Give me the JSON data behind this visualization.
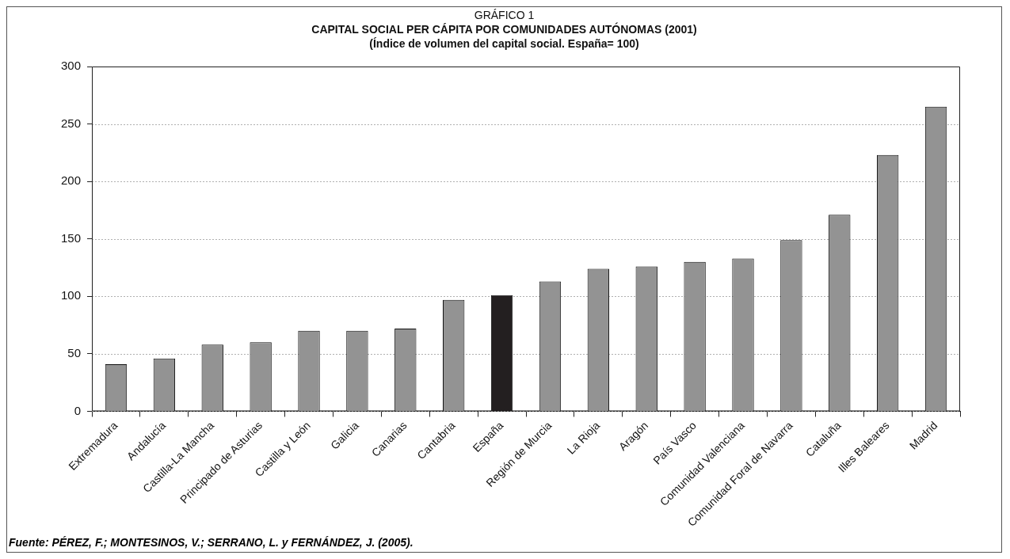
{
  "chart_data": {
    "type": "bar",
    "title": "CAPITAL SOCIAL PER CÁPITA POR COMUNIDADES AUTÓNOMAS (2001)",
    "subtitle": "(Índice de volumen del capital social. España= 100)",
    "annotations": [
      "GRÁFICO 1",
      "Fuente: PÉREZ, F.; MONTESINOS, V.; SERRANO, L. y FERNÁNDEZ, J. (2005)."
    ],
    "categories": [
      "Extremadura",
      "Andalucía",
      "Castilla-La Mancha",
      "Principado de Asturias",
      "Castilla y León",
      "Galicia",
      "Canarias",
      "Cantabria",
      "España",
      "Región de Murcia",
      "La Rioja",
      "Aragón",
      "País Vasco",
      "Comunidad Valenciana",
      "Comunidad Foral de Navarra",
      "Cataluña",
      "Illes Baleares",
      "Madrid"
    ],
    "values": [
      41,
      46,
      58,
      60,
      70,
      70,
      72,
      97,
      101,
      113,
      124,
      126,
      130,
      133,
      149,
      171,
      223,
      265
    ],
    "colors": [
      "#939393",
      "#939393",
      "#939393",
      "#939393",
      "#939393",
      "#939393",
      "#939393",
      "#939393",
      "#231f20",
      "#939393",
      "#939393",
      "#939393",
      "#939393",
      "#939393",
      "#939393",
      "#939393",
      "#939393",
      "#939393"
    ],
    "ylim": [
      0,
      300
    ],
    "yticks": [
      0,
      50,
      100,
      150,
      200,
      250,
      300
    ],
    "grid": "y"
  }
}
